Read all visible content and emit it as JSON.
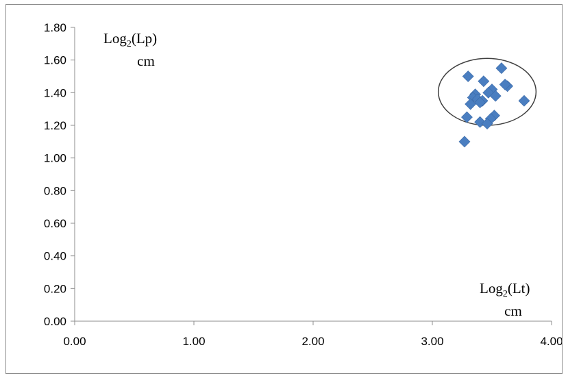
{
  "chart_data": {
    "type": "scatter",
    "title": "",
    "xlim": [
      0,
      4
    ],
    "ylim": [
      0,
      1.8
    ],
    "x_ticks": [
      "0.00",
      "1.00",
      "2.00",
      "3.00",
      "4.00"
    ],
    "y_ticks": [
      "0.00",
      "0.20",
      "0.40",
      "0.60",
      "0.80",
      "1.00",
      "1.20",
      "1.40",
      "1.60",
      "1.80"
    ],
    "xlabel": {
      "prefix": "Log",
      "sub": "2",
      "suffix": "(Lt)",
      "unit": "cm"
    },
    "ylabel": {
      "prefix": "Log",
      "sub": "2",
      "suffix": "(Lp)",
      "unit": "cm"
    },
    "grid": false,
    "marker": "diamond",
    "marker_color": "#4a7ec0",
    "annotation": {
      "shape": "ellipse",
      "center": [
        3.46,
        1.405
      ],
      "rx": 0.41,
      "ry": 0.205,
      "color": "#404040"
    },
    "series": [
      {
        "points": [
          [
            3.3,
            1.5
          ],
          [
            3.58,
            1.55
          ],
          [
            3.43,
            1.47
          ],
          [
            3.63,
            1.44
          ],
          [
            3.61,
            1.45
          ],
          [
            3.5,
            1.42
          ],
          [
            3.47,
            1.4
          ],
          [
            3.53,
            1.38
          ],
          [
            3.36,
            1.39
          ],
          [
            3.34,
            1.37
          ],
          [
            3.38,
            1.36
          ],
          [
            3.42,
            1.35
          ],
          [
            3.4,
            1.34
          ],
          [
            3.32,
            1.33
          ],
          [
            3.77,
            1.35
          ],
          [
            3.52,
            1.26
          ],
          [
            3.49,
            1.24
          ],
          [
            3.29,
            1.25
          ],
          [
            3.4,
            1.22
          ],
          [
            3.46,
            1.21
          ],
          [
            3.27,
            1.1
          ]
        ]
      }
    ]
  }
}
